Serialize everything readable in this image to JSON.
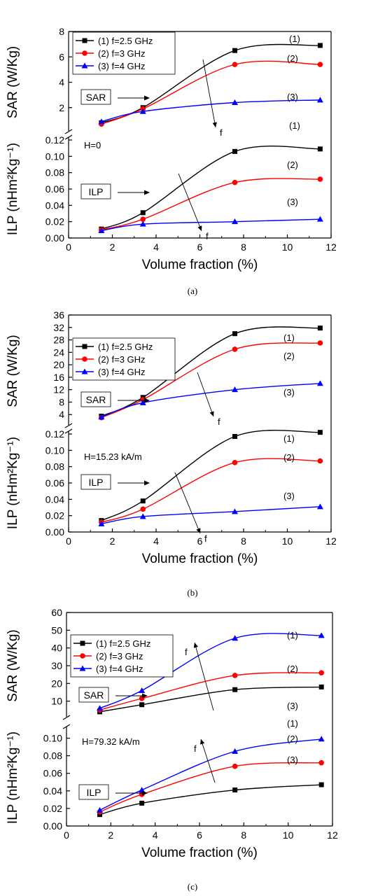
{
  "figure": {
    "panels": [
      {
        "caption": "(a)",
        "x_axis": {
          "label": "Volume fraction (%)",
          "range": [
            0,
            12
          ],
          "ticks": [
            "0",
            "2",
            "4",
            "6",
            "8",
            "10",
            "12"
          ]
        },
        "sar_axis": {
          "label": "SAR (W/Kg)",
          "range": [
            0,
            8
          ],
          "ticks": [
            "2",
            "4",
            "6",
            "8"
          ]
        },
        "ilp_axis": {
          "label": "ILP (nHm²Kg⁻¹)",
          "range": [
            0,
            0.12
          ],
          "ticks": [
            "0.00",
            "0.02",
            "0.04",
            "0.06",
            "0.08",
            "0.10",
            "0.12"
          ]
        },
        "field_label": "H=0",
        "sar_box": "SAR",
        "ilp_box": "ILP",
        "arrow_label": "f",
        "legend": [
          "(1) f=2.5 GHz",
          "(2) f=3 GHz",
          "(3) f=4 GHz"
        ],
        "curve_labels": [
          "(1)",
          "(2)",
          "(3)"
        ]
      },
      {
        "caption": "(b)",
        "x_axis": {
          "label": "Volume fraction (%)",
          "range": [
            0,
            12
          ],
          "ticks": [
            "0",
            "2",
            "4",
            "6",
            "8",
            "10",
            "12"
          ]
        },
        "sar_axis": {
          "label": "SAR (W/Kg)",
          "range": [
            0,
            36
          ],
          "ticks": [
            "4",
            "8",
            "12",
            "16",
            "20",
            "24",
            "28",
            "32",
            "36"
          ]
        },
        "ilp_axis": {
          "label": "ILP (nHm²Kg⁻¹)",
          "range": [
            0,
            0.12
          ],
          "ticks": [
            "0.00",
            "0.02",
            "0.04",
            "0.06",
            "0.08",
            "0.10",
            "0.12"
          ]
        },
        "field_label": "H=15.23 kA/m",
        "sar_box": "SAR",
        "ilp_box": "ILP",
        "arrow_label": "f",
        "legend": [
          "(1) f=2.5 GHz",
          "(2) f=3 GHz",
          "(3) f=4 GHz"
        ],
        "curve_labels": [
          "(1)",
          "(2)",
          "(3)"
        ]
      },
      {
        "caption": "(c)",
        "x_axis": {
          "label": "Volume fraction (%)",
          "range": [
            0,
            12
          ],
          "ticks": [
            "0",
            "2",
            "4",
            "6",
            "8",
            "10",
            "12"
          ]
        },
        "sar_axis": {
          "label": "SAR (W/Kg)",
          "range": [
            0,
            60
          ],
          "ticks": [
            "10",
            "20",
            "30",
            "40",
            "50",
            "60"
          ]
        },
        "ilp_axis": {
          "label": "ILP (nHm²Kg⁻¹)",
          "range": [
            0,
            0.11
          ],
          "ticks": [
            "0.00",
            "0.02",
            "0.04",
            "0.06",
            "0.08",
            "0.10"
          ]
        },
        "field_label": "H=79.32 kA/m",
        "sar_box": "SAR",
        "ilp_box": "ILP",
        "arrow_label": "f",
        "legend": [
          "(1) f=2.5 GHz",
          "(2) f=3 GHz",
          "(3) f=4 GHz"
        ],
        "curve_labels": [
          "(1)",
          "(2)",
          "(3)"
        ]
      }
    ]
  },
  "chart_data": [
    {
      "type": "scatter",
      "panel": "(a)",
      "x": [
        1.5,
        3.4,
        7.6,
        11.5
      ],
      "sar_series": [
        {
          "name": "(1) f=2.5 GHz",
          "values": [
            0.8,
            2.0,
            6.5,
            6.9
          ],
          "color": "#000000"
        },
        {
          "name": "(2) f=3 GHz",
          "values": [
            0.7,
            1.9,
            5.4,
            5.4
          ],
          "color": "#ff0000"
        },
        {
          "name": "(3) f=4 GHz",
          "values": [
            0.9,
            1.7,
            2.4,
            2.6
          ],
          "color": "#0000ff"
        }
      ],
      "ilp_series": [
        {
          "name": "(1) f=2.5 GHz",
          "values": [
            0.011,
            0.031,
            0.106,
            0.109
          ],
          "color": "#000000"
        },
        {
          "name": "(2) f=3 GHz",
          "values": [
            0.01,
            0.023,
            0.068,
            0.072
          ],
          "color": "#ff0000"
        },
        {
          "name": "(3) f=4 GHz",
          "values": [
            0.009,
            0.017,
            0.02,
            0.023
          ],
          "color": "#0000ff"
        }
      ]
    },
    {
      "type": "scatter",
      "panel": "(b)",
      "x": [
        1.5,
        3.4,
        7.6,
        11.5
      ],
      "sar_series": [
        {
          "name": "(1) f=2.5 GHz",
          "values": [
            3.5,
            9.5,
            30.0,
            31.8
          ],
          "color": "#000000"
        },
        {
          "name": "(2) f=3 GHz",
          "values": [
            3.0,
            8.8,
            25.0,
            27.0
          ],
          "color": "#ff0000"
        },
        {
          "name": "(3) f=4 GHz",
          "values": [
            3.2,
            7.8,
            12.0,
            14.0
          ],
          "color": "#0000ff"
        }
      ],
      "ilp_series": [
        {
          "name": "(1) f=2.5 GHz",
          "values": [
            0.014,
            0.038,
            0.117,
            0.122
          ],
          "color": "#000000"
        },
        {
          "name": "(2) f=3 GHz",
          "values": [
            0.012,
            0.028,
            0.085,
            0.087
          ],
          "color": "#ff0000"
        },
        {
          "name": "(3) f=4 GHz",
          "values": [
            0.01,
            0.019,
            0.025,
            0.031
          ],
          "color": "#0000ff"
        }
      ]
    },
    {
      "type": "scatter",
      "panel": "(c)",
      "x": [
        1.5,
        3.4,
        7.6,
        11.5
      ],
      "sar_series": [
        {
          "name": "(1) f=2.5 GHz",
          "values": [
            4.0,
            8.0,
            16.5,
            18.0
          ],
          "color": "#000000"
        },
        {
          "name": "(2) f=3 GHz",
          "values": [
            5.0,
            11.5,
            24.5,
            26.0
          ],
          "color": "#ff0000"
        },
        {
          "name": "(3) f=4 GHz",
          "values": [
            6.0,
            16.0,
            45.5,
            47.0
          ],
          "color": "#0000ff"
        }
      ],
      "ilp_series": [
        {
          "name": "(1) f=2.5 GHz",
          "values": [
            0.013,
            0.026,
            0.041,
            0.047
          ],
          "color": "#000000"
        },
        {
          "name": "(2) f=3 GHz",
          "values": [
            0.016,
            0.036,
            0.068,
            0.072
          ],
          "color": "#ff0000"
        },
        {
          "name": "(3) f=4 GHz",
          "values": [
            0.018,
            0.041,
            0.085,
            0.099
          ],
          "color": "#0000ff"
        }
      ]
    }
  ]
}
